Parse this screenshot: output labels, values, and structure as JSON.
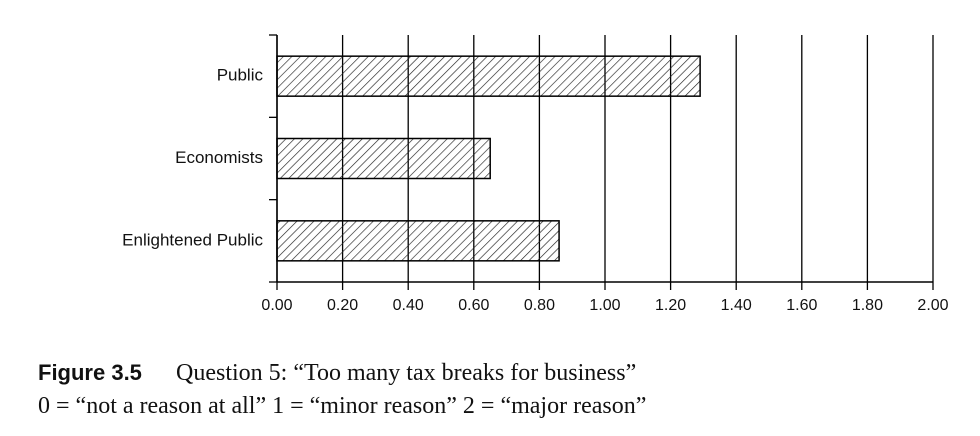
{
  "chart_data": {
    "type": "barh",
    "figure_label": "Figure 3.5",
    "title": "Question 5: “Too many tax breaks for business”",
    "subtitle": "0 = “not a reason at all” 1 = “minor reason” 2 = “major reason”",
    "categories": [
      "Public",
      "Economists",
      "Enlightened Public"
    ],
    "values": [
      1.29,
      0.65,
      0.86
    ],
    "color": "#000000",
    "xlim": [
      0,
      2
    ],
    "xticks": [
      {
        "value": 0,
        "label": "0.00"
      },
      {
        "value": 0.2,
        "label": "0.20"
      },
      {
        "value": 0.4,
        "label": "0.40"
      },
      {
        "value": 0.6,
        "label": "0.60"
      },
      {
        "value": 0.8,
        "label": "0.80"
      },
      {
        "value": 1,
        "label": "1.00"
      },
      {
        "value": 1.2,
        "label": "1.20"
      },
      {
        "value": 1.4,
        "label": "1.40"
      },
      {
        "value": 1.6,
        "label": "1.60"
      },
      {
        "value": 1.8,
        "label": "1.80"
      },
      {
        "value": 2,
        "label": "2.00"
      }
    ],
    "grid": true
  }
}
